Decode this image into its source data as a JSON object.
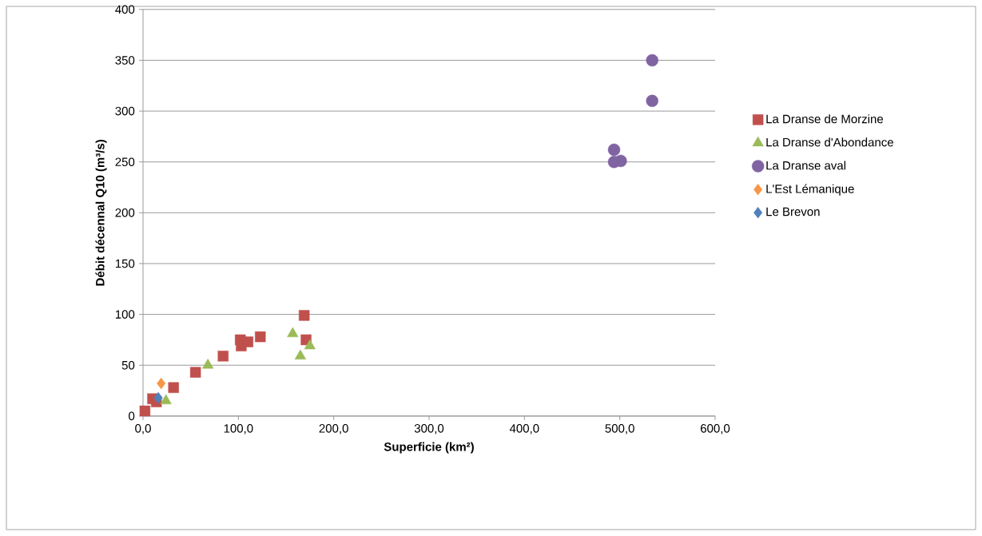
{
  "chart_data": {
    "type": "scatter",
    "xlabel": "Superficie (km²)",
    "ylabel": "Débit décennal Q10 (m³/s)",
    "xlim": [
      0,
      600
    ],
    "ylim": [
      0,
      400
    ],
    "xticks": [
      {
        "value": 0,
        "label": "0,0"
      },
      {
        "value": 100,
        "label": "100,0"
      },
      {
        "value": 200,
        "label": "200,0"
      },
      {
        "value": 300,
        "label": "300,0"
      },
      {
        "value": 400,
        "label": "400,0"
      },
      {
        "value": 500,
        "label": "500,0"
      },
      {
        "value": 600,
        "label": "600,0"
      }
    ],
    "yticks": [
      0,
      50,
      100,
      150,
      200,
      250,
      300,
      350,
      400
    ],
    "grid": "y",
    "legend": "right",
    "series": [
      {
        "name": "La Dranse de Morzine",
        "color": "#c0504d",
        "marker": "square",
        "x": [
          2,
          10,
          14,
          32,
          55,
          84,
          102,
          103,
          110,
          123,
          169,
          171
        ],
        "values": [
          5,
          17,
          14,
          28,
          43,
          59,
          75,
          69,
          73,
          78,
          99,
          75
        ]
      },
      {
        "name": "La Dranse d'Abondance",
        "color": "#9bbb59",
        "marker": "triangle",
        "x": [
          24,
          68,
          157,
          165,
          175
        ],
        "values": [
          15,
          50,
          81,
          59,
          69
        ]
      },
      {
        "name": "La Dranse aval",
        "color": "#8064a2",
        "marker": "circle",
        "x": [
          534,
          534,
          494,
          494,
          501
        ],
        "values": [
          350,
          310,
          262,
          250,
          251
        ]
      },
      {
        "name": "L'Est Lémanique",
        "color": "#f79646",
        "marker": "diamond",
        "x": [
          19
        ],
        "values": [
          32
        ]
      },
      {
        "name": "Le Brevon",
        "color": "#4f81bd",
        "marker": "diamond",
        "x": [
          16
        ],
        "values": [
          18
        ]
      }
    ]
  }
}
